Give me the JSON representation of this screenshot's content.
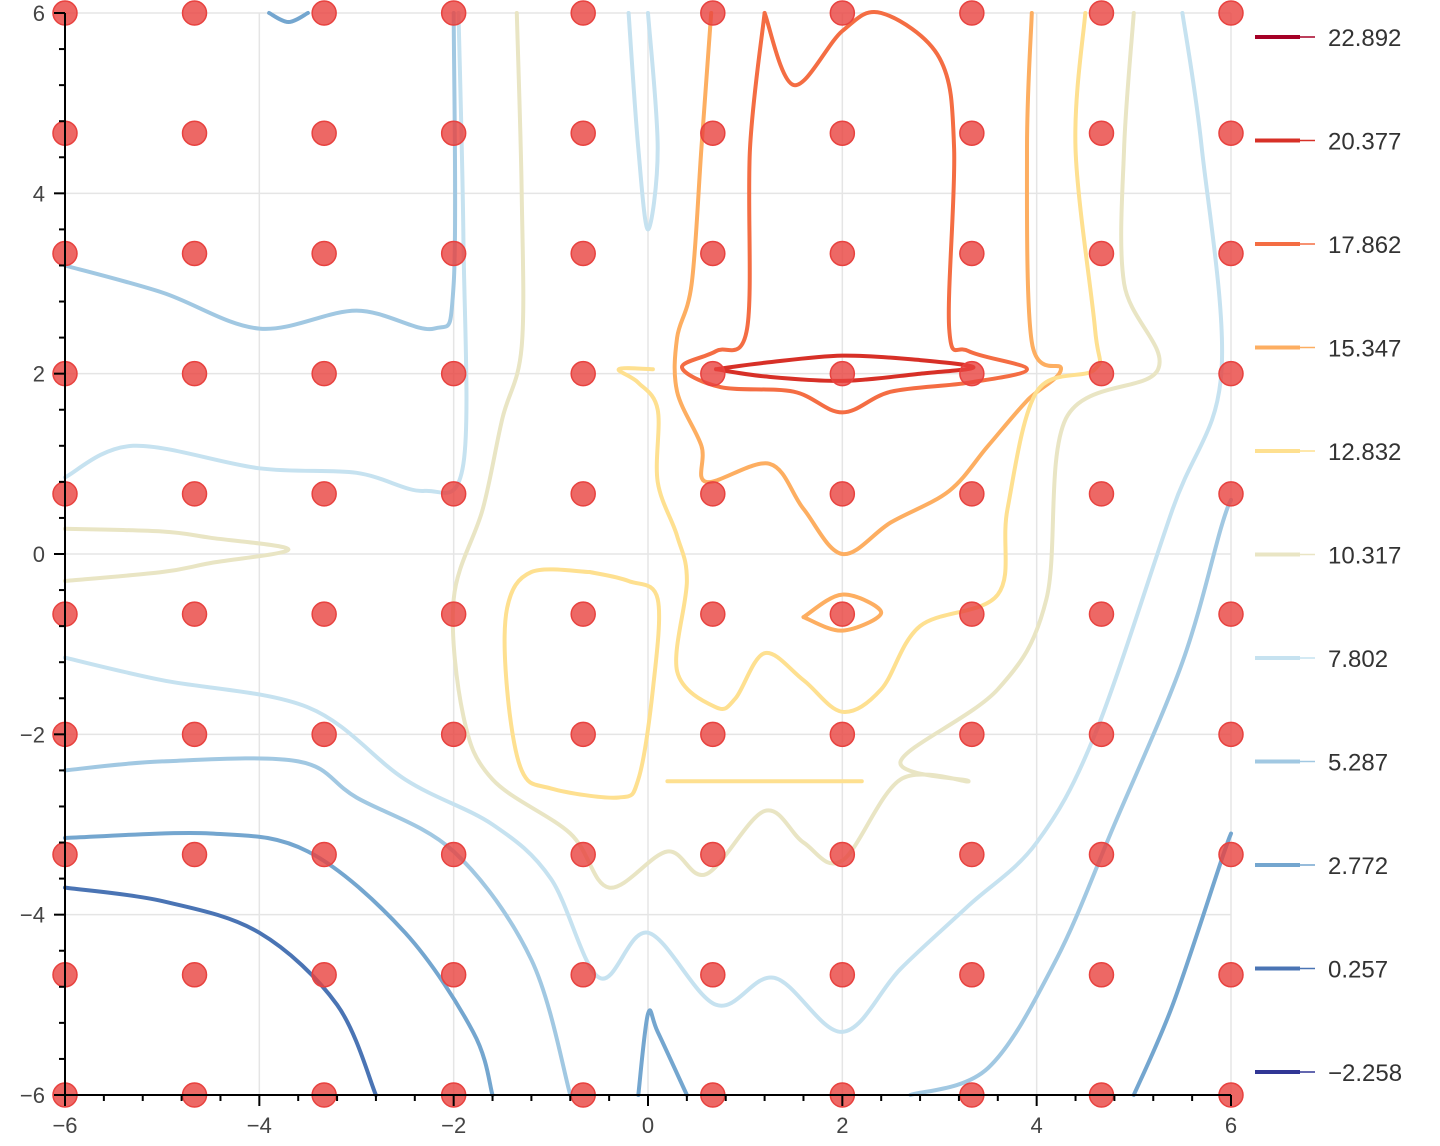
{
  "chart_data": {
    "type": "contour",
    "title": "",
    "xlabel": "",
    "ylabel": "",
    "xlim": [
      -6,
      6
    ],
    "ylim": [
      -6,
      6
    ],
    "grid": true,
    "legend_placement": "right",
    "x_ticks": [
      {
        "value": -6,
        "label": "−6"
      },
      {
        "value": -4,
        "label": "−4"
      },
      {
        "value": -2,
        "label": "−2"
      },
      {
        "value": 0,
        "label": "0"
      },
      {
        "value": 2,
        "label": "2"
      },
      {
        "value": 4,
        "label": "4"
      },
      {
        "value": 6,
        "label": "6"
      }
    ],
    "y_ticks": [
      {
        "value": -6,
        "label": "−6"
      },
      {
        "value": -4,
        "label": "−4"
      },
      {
        "value": -2,
        "label": "−2"
      },
      {
        "value": 0,
        "label": "0"
      },
      {
        "value": 2,
        "label": "2"
      },
      {
        "value": 4,
        "label": "4"
      },
      {
        "value": 6,
        "label": "6"
      }
    ],
    "contour_levels": [
      {
        "value": "22.892",
        "color": "#a50026"
      },
      {
        "value": "20.377",
        "color": "#d73027"
      },
      {
        "value": "17.862",
        "color": "#f46d43"
      },
      {
        "value": "15.347",
        "color": "#fdae61"
      },
      {
        "value": "12.832",
        "color": "#fee090"
      },
      {
        "value": "10.317",
        "color": "#e9e5c4"
      },
      {
        "value": "7.802",
        "color": "#c6e2f0"
      },
      {
        "value": "5.287",
        "color": "#a1c8e2"
      },
      {
        "value": "2.772",
        "color": "#74a6cf"
      },
      {
        "value": "0.257",
        "color": "#4a74b4"
      },
      {
        "value": "-2.258",
        "label": "−2.258",
        "color": "#313695"
      }
    ],
    "scatter": {
      "color": "#e8423f",
      "x": [
        -6,
        -4.667,
        -3.333,
        -2,
        -0.667,
        0.667,
        2,
        3.333,
        4.667,
        6
      ],
      "y": [
        -6,
        -4.667,
        -3.333,
        -2,
        -0.667,
        0.667,
        2,
        3.333,
        4.667,
        6
      ]
    },
    "contours": [
      {
        "level": "22.892",
        "paths": []
      },
      {
        "level": "20.377",
        "paths": [
          [
            [
              0.7,
              2.05
            ],
            [
              1.2,
              2.12
            ],
            [
              2.0,
              2.2
            ],
            [
              2.8,
              2.15
            ],
            [
              3.35,
              2.07
            ],
            [
              2.8,
              2.0
            ],
            [
              2.0,
              1.92
            ],
            [
              1.2,
              1.97
            ],
            [
              0.7,
              2.05
            ]
          ]
        ]
      },
      {
        "level": "17.862",
        "paths": [
          [
            [
              1.2,
              6.0
            ],
            [
              1.05,
              4.5
            ],
            [
              1.02,
              2.5
            ],
            [
              0.7,
              2.25
            ],
            [
              0.35,
              2.07
            ],
            [
              0.75,
              1.85
            ],
            [
              1.5,
              1.8
            ],
            [
              2.0,
              1.57
            ],
            [
              2.5,
              1.8
            ],
            [
              3.3,
              1.9
            ],
            [
              3.9,
              2.05
            ],
            [
              3.3,
              2.25
            ],
            [
              3.1,
              2.5
            ],
            [
              3.15,
              4.5
            ],
            [
              3.0,
              5.5
            ],
            [
              2.4,
              6.0
            ],
            [
              2.0,
              5.8
            ],
            [
              1.5,
              5.2
            ],
            [
              1.2,
              6.0
            ]
          ]
        ]
      },
      {
        "level": "15.347",
        "paths": [
          [
            [
              0.65,
              6.0
            ],
            [
              0.55,
              4.5
            ],
            [
              0.45,
              3.0
            ],
            [
              0.3,
              2.4
            ],
            [
              0.3,
              1.8
            ],
            [
              0.55,
              1.2
            ],
            [
              0.6,
              0.8
            ],
            [
              1.25,
              1.0
            ],
            [
              1.6,
              0.5
            ],
            [
              2.0,
              0.0
            ],
            [
              2.5,
              0.35
            ],
            [
              3.1,
              0.7
            ],
            [
              3.5,
              1.2
            ],
            [
              3.9,
              1.7
            ],
            [
              4.25,
              2.05
            ],
            [
              3.95,
              2.35
            ],
            [
              3.9,
              4.5
            ],
            [
              3.95,
              6.0
            ]
          ],
          [
            [
              1.6,
              -0.7
            ],
            [
              2.0,
              -0.45
            ],
            [
              2.4,
              -0.65
            ],
            [
              2.0,
              -0.85
            ],
            [
              1.6,
              -0.7
            ]
          ]
        ]
      },
      {
        "level": "12.832",
        "paths": [
          [
            [
              0.05,
              2.05
            ],
            [
              -0.3,
              2.05
            ],
            [
              -0.1,
              1.9
            ],
            [
              0.1,
              1.6
            ],
            [
              0.1,
              0.8
            ],
            [
              0.3,
              0.2
            ],
            [
              0.4,
              -0.3
            ],
            [
              0.3,
              -1.3
            ],
            [
              0.7,
              -1.7
            ],
            [
              0.9,
              -1.6
            ],
            [
              1.2,
              -1.1
            ],
            [
              1.6,
              -1.4
            ],
            [
              2.0,
              -1.75
            ],
            [
              2.4,
              -1.5
            ],
            [
              2.8,
              -0.8
            ],
            [
              3.6,
              -0.45
            ],
            [
              3.7,
              0.5
            ],
            [
              4.0,
              1.8
            ],
            [
              4.6,
              2.05
            ],
            [
              4.6,
              2.5
            ],
            [
              4.4,
              4.5
            ],
            [
              4.5,
              6.0
            ]
          ],
          [
            [
              -0.6,
              -0.2
            ],
            [
              -1.2,
              -0.2
            ],
            [
              -1.45,
              -0.6
            ],
            [
              -1.45,
              -1.5
            ],
            [
              -1.3,
              -2.4
            ],
            [
              -1.0,
              -2.6
            ],
            [
              -0.3,
              -2.7
            ],
            [
              -0.1,
              -2.5
            ],
            [
              0.05,
              -1.5
            ],
            [
              0.1,
              -0.5
            ],
            [
              -0.2,
              -0.3
            ],
            [
              -0.6,
              -0.2
            ]
          ],
          [
            [
              0.2,
              -2.52
            ],
            [
              2.2,
              -2.52
            ]
          ]
        ]
      },
      {
        "level": "10.317",
        "paths": [
          [
            [
              -6,
              0.28
            ],
            [
              -5.0,
              0.25
            ],
            [
              -4.5,
              0.18
            ],
            [
              -3.7,
              0.05
            ],
            [
              -4.5,
              -0.1
            ],
            [
              -5.0,
              -0.2
            ],
            [
              -6,
              -0.3
            ]
          ],
          [
            [
              -1.35,
              6.0
            ],
            [
              -1.3,
              4.0
            ],
            [
              -1.3,
              2.3
            ],
            [
              -1.5,
              1.5
            ],
            [
              -1.7,
              0.5
            ],
            [
              -2.0,
              -0.5
            ],
            [
              -1.9,
              -1.8
            ],
            [
              -1.6,
              -2.5
            ],
            [
              -0.8,
              -3.1
            ],
            [
              -0.4,
              -3.7
            ],
            [
              0.2,
              -3.3
            ],
            [
              0.6,
              -3.55
            ],
            [
              1.2,
              -2.85
            ],
            [
              1.6,
              -3.2
            ],
            [
              2.0,
              -3.4
            ],
            [
              2.6,
              -2.5
            ],
            [
              3.3,
              -2.52
            ],
            [
              2.6,
              -2.3
            ],
            [
              3.6,
              -1.5
            ],
            [
              4.1,
              -0.5
            ],
            [
              4.3,
              1.5
            ],
            [
              5.25,
              2.05
            ],
            [
              4.9,
              3.0
            ],
            [
              4.9,
              4.5
            ],
            [
              5.0,
              6.0
            ]
          ]
        ]
      },
      {
        "level": "7.802",
        "paths": [
          [
            [
              -6,
              0.85
            ],
            [
              -5.3,
              1.2
            ],
            [
              -4.0,
              0.95
            ],
            [
              -3.0,
              0.9
            ],
            [
              -2.3,
              0.7
            ],
            [
              -1.9,
              1.0
            ],
            [
              -1.9,
              3.5
            ],
            [
              -1.95,
              6.0
            ]
          ],
          [
            [
              -0.2,
              6.0
            ],
            [
              -0.1,
              4.5
            ],
            [
              0.0,
              3.6
            ],
            [
              0.1,
              4.5
            ],
            [
              0.0,
              6.0
            ]
          ],
          [
            [
              -6,
              -1.15
            ],
            [
              -5.0,
              -1.4
            ],
            [
              -3.5,
              -1.7
            ],
            [
              -2.5,
              -2.5
            ],
            [
              -1.6,
              -3.0
            ],
            [
              -1.0,
              -3.6
            ],
            [
              -0.5,
              -4.7
            ],
            [
              0.0,
              -4.2
            ],
            [
              0.7,
              -5.0
            ],
            [
              1.3,
              -4.7
            ],
            [
              2.0,
              -5.3
            ],
            [
              2.6,
              -4.6
            ],
            [
              3.3,
              -3.9
            ],
            [
              4.0,
              -3.2
            ],
            [
              4.6,
              -2.0
            ],
            [
              5.4,
              0.5
            ],
            [
              5.9,
              2.0
            ],
            [
              5.7,
              4.5
            ],
            [
              5.5,
              6.0
            ]
          ]
        ]
      },
      {
        "level": "5.287",
        "paths": [
          [
            [
              -6,
              3.2
            ],
            [
              -5.0,
              2.9
            ],
            [
              -4.0,
              2.5
            ],
            [
              -3.0,
              2.7
            ],
            [
              -2.2,
              2.5
            ],
            [
              -2.0,
              3.0
            ],
            [
              -2.0,
              6.0
            ]
          ],
          [
            [
              -6,
              -2.4
            ],
            [
              -5.0,
              -2.3
            ],
            [
              -3.6,
              -2.3
            ],
            [
              -3.0,
              -2.7
            ],
            [
              -2.0,
              -3.3
            ],
            [
              -1.2,
              -4.5
            ],
            [
              -0.8,
              -6.0
            ]
          ],
          [
            [
              2.7,
              -6.0
            ],
            [
              3.5,
              -5.7
            ],
            [
              4.2,
              -4.5
            ],
            [
              4.8,
              -3.0
            ],
            [
              5.5,
              -1.2
            ],
            [
              5.9,
              0.3
            ],
            [
              6.0,
              0.6
            ]
          ]
        ]
      },
      {
        "level": "2.772",
        "paths": [
          [
            [
              -3.9,
              6.0
            ],
            [
              -3.7,
              5.9
            ],
            [
              -3.5,
              6.0
            ]
          ],
          [
            [
              -6,
              -3.15
            ],
            [
              -4.5,
              -3.1
            ],
            [
              -3.5,
              -3.3
            ],
            [
              -2.5,
              -4.2
            ],
            [
              -1.8,
              -5.3
            ],
            [
              -1.6,
              -6.0
            ]
          ],
          [
            [
              -0.1,
              -6.0
            ],
            [
              0.0,
              -5.1
            ],
            [
              0.1,
              -5.3
            ],
            [
              0.4,
              -6.0
            ]
          ],
          [
            [
              5.0,
              -6.0
            ],
            [
              5.4,
              -5.0
            ],
            [
              5.9,
              -3.4
            ],
            [
              6.0,
              -3.1
            ]
          ]
        ]
      },
      {
        "level": "0.257",
        "paths": [
          [
            [
              -6,
              -3.7
            ],
            [
              -5.0,
              -3.85
            ],
            [
              -4.0,
              -4.2
            ],
            [
              -3.2,
              -5.0
            ],
            [
              -2.8,
              -6.0
            ]
          ]
        ]
      },
      {
        "level": "-2.258",
        "paths": []
      }
    ]
  }
}
